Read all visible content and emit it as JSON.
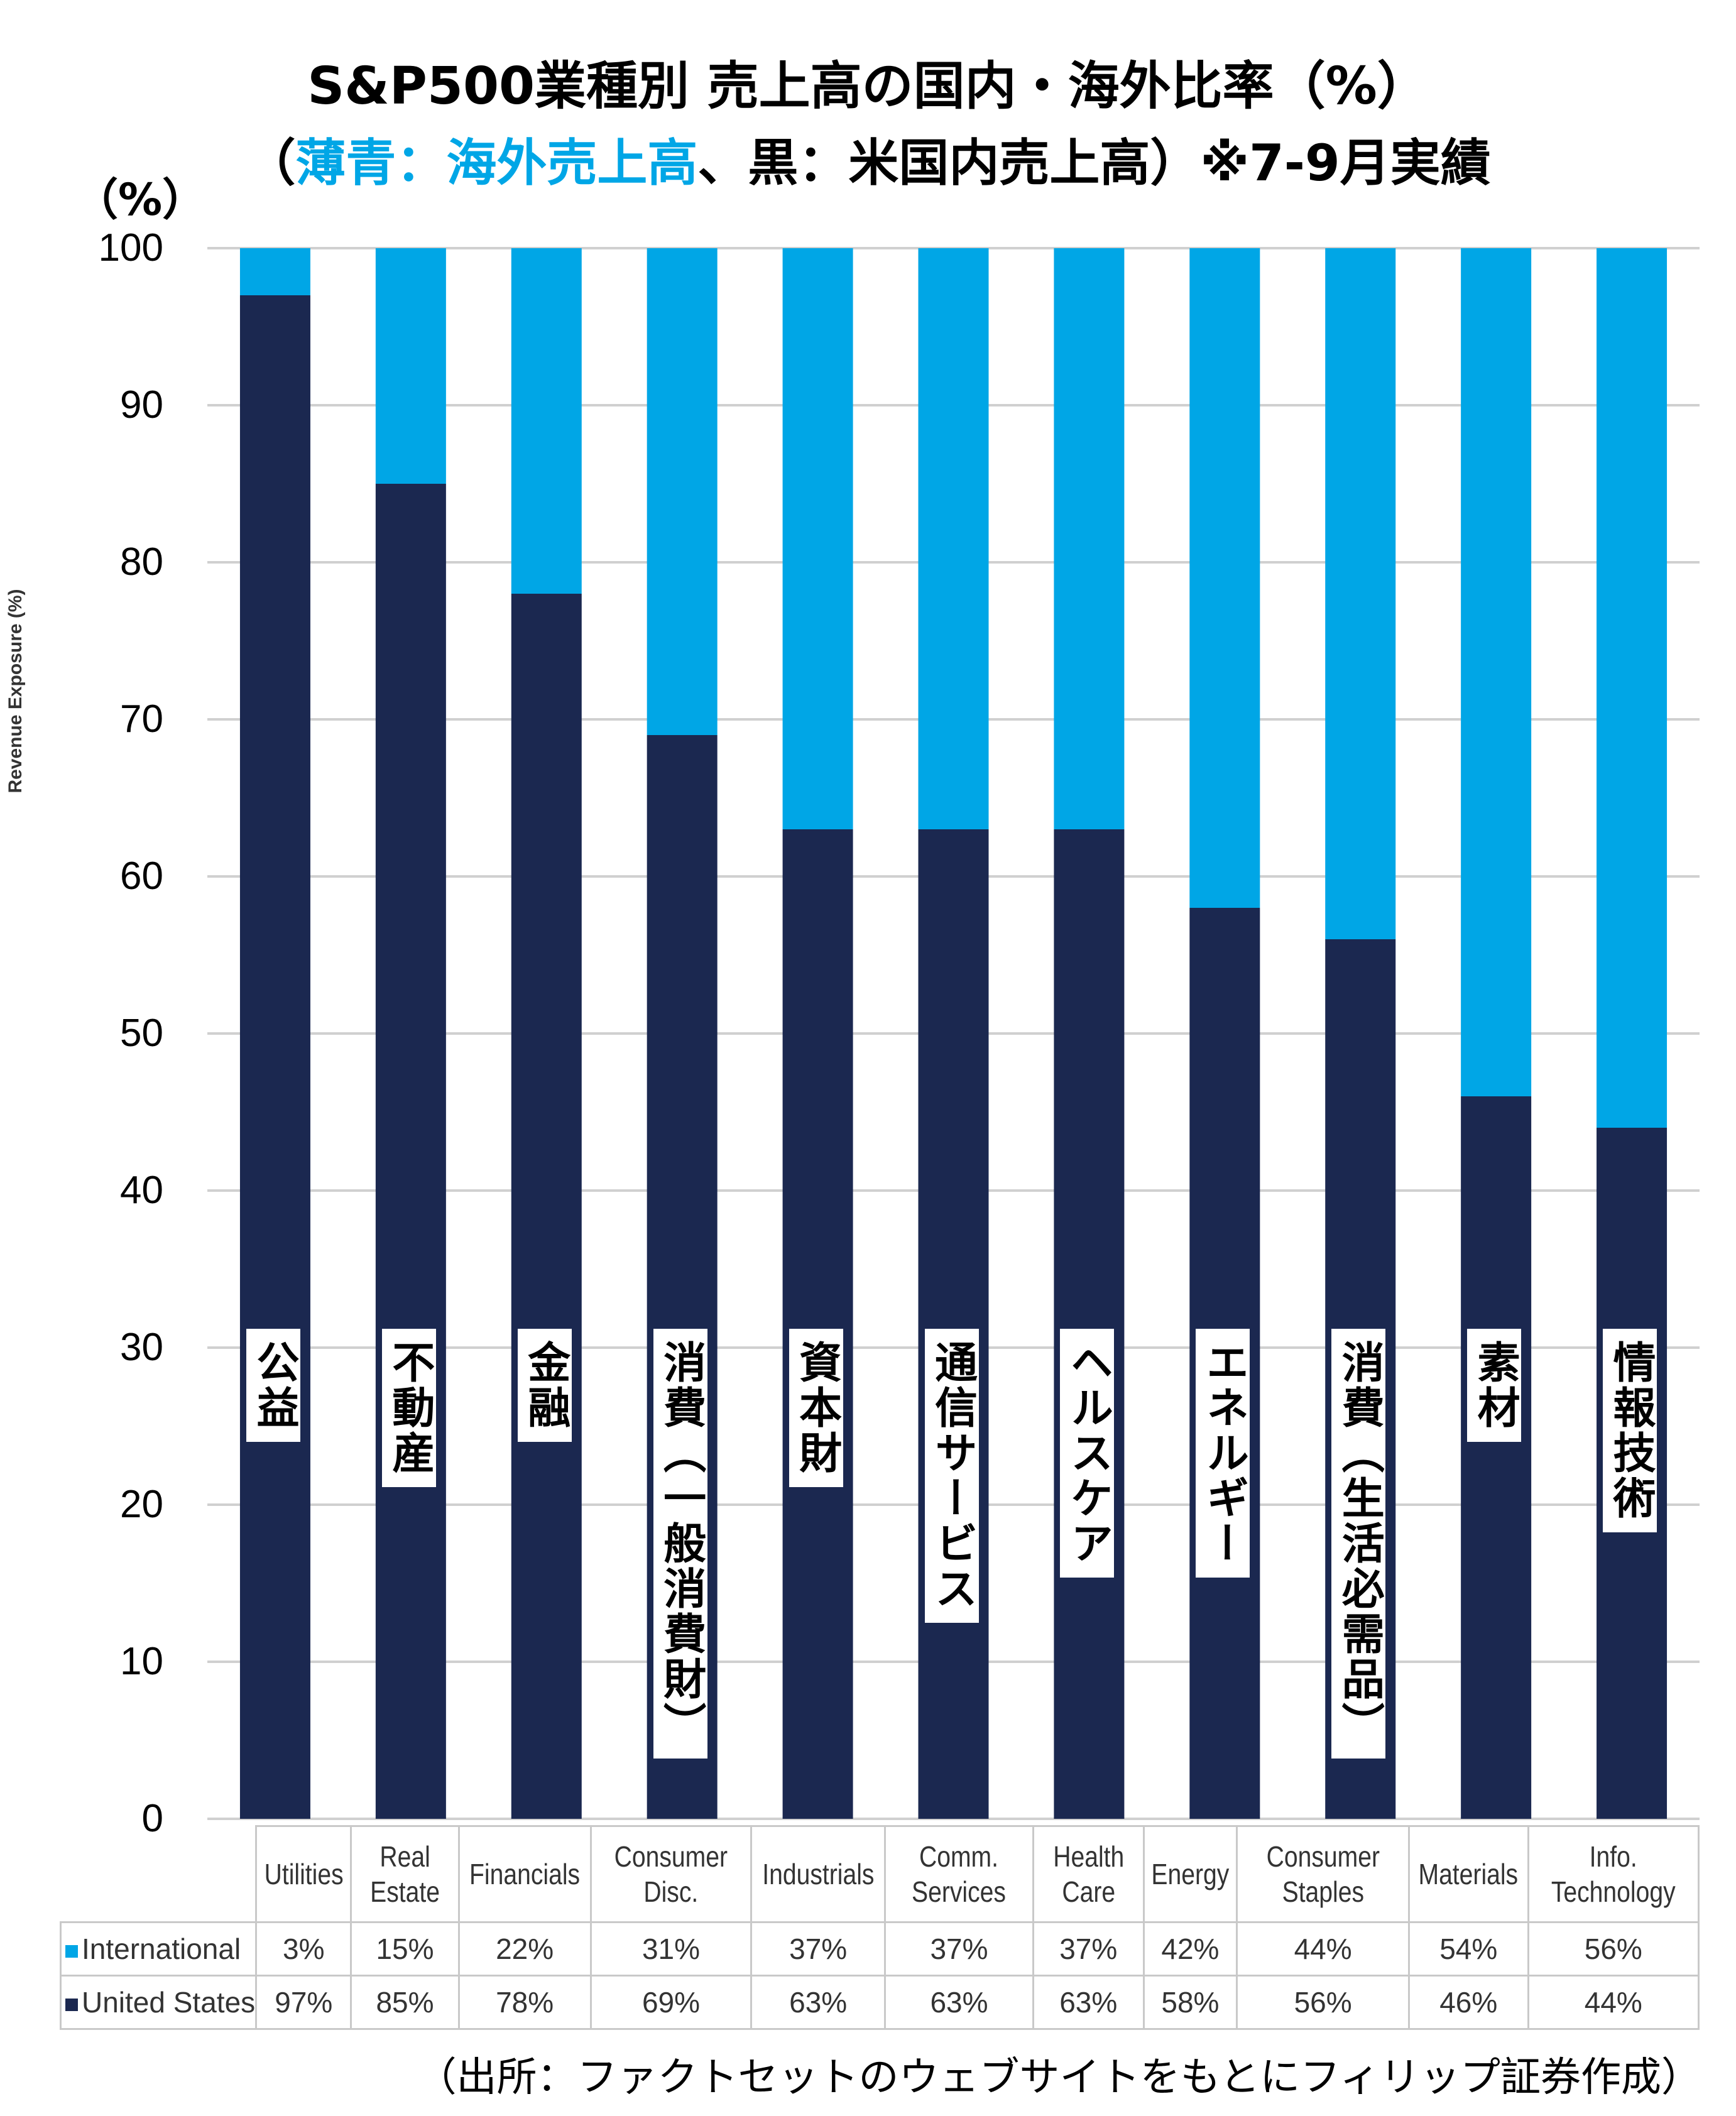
{
  "title": "S&P500業種別 売上高の国内・海外比率（%）",
  "subtitle": {
    "open": "（",
    "intl_part": "薄青：海外売上高",
    "rest": "、黒：米国内売上高）※7-9月実績"
  },
  "unit_label": "（%）",
  "y_axis_rotated_label": "Revenue Exposure (%)",
  "source": "（出所：ファクトセットのウェブサイトをもとにフィリップ証券作成）",
  "colors": {
    "international": "#00a6e6",
    "united_states": "#1b2850",
    "grid": "#d0d0d0"
  },
  "chart_data": {
    "type": "bar",
    "stacked": true,
    "ylim": [
      0,
      100
    ],
    "yticks": [
      "0",
      "10",
      "20",
      "30",
      "40",
      "50",
      "60",
      "70",
      "80",
      "90",
      "100"
    ],
    "categories": [
      "Utilities",
      "Real Estate",
      "Financials",
      "Consumer Disc.",
      "Industrials",
      "Comm. Services",
      "Health Care",
      "Energy",
      "Consumer Staples",
      "Materials",
      "Info. Technology"
    ],
    "jp_labels": [
      "公益",
      "不動産",
      "金融",
      "消費（一般消費財）",
      "資本財",
      "通信サービス",
      "ヘルスケア",
      "エネルギー",
      "消費（生活必需品）",
      "素材",
      "情報技術"
    ],
    "series": [
      {
        "name": "United States",
        "values": [
          97,
          85,
          78,
          69,
          63,
          63,
          63,
          58,
          56,
          46,
          44
        ],
        "labels": [
          "97%",
          "85%",
          "78%",
          "69%",
          "63%",
          "63%",
          "63%",
          "58%",
          "56%",
          "46%",
          "44%"
        ]
      },
      {
        "name": "International",
        "values": [
          3,
          15,
          22,
          31,
          37,
          37,
          37,
          42,
          44,
          54,
          56
        ],
        "labels": [
          "3%",
          "15%",
          "22%",
          "31%",
          "37%",
          "37%",
          "37%",
          "42%",
          "44%",
          "54%",
          "56%"
        ]
      }
    ]
  }
}
